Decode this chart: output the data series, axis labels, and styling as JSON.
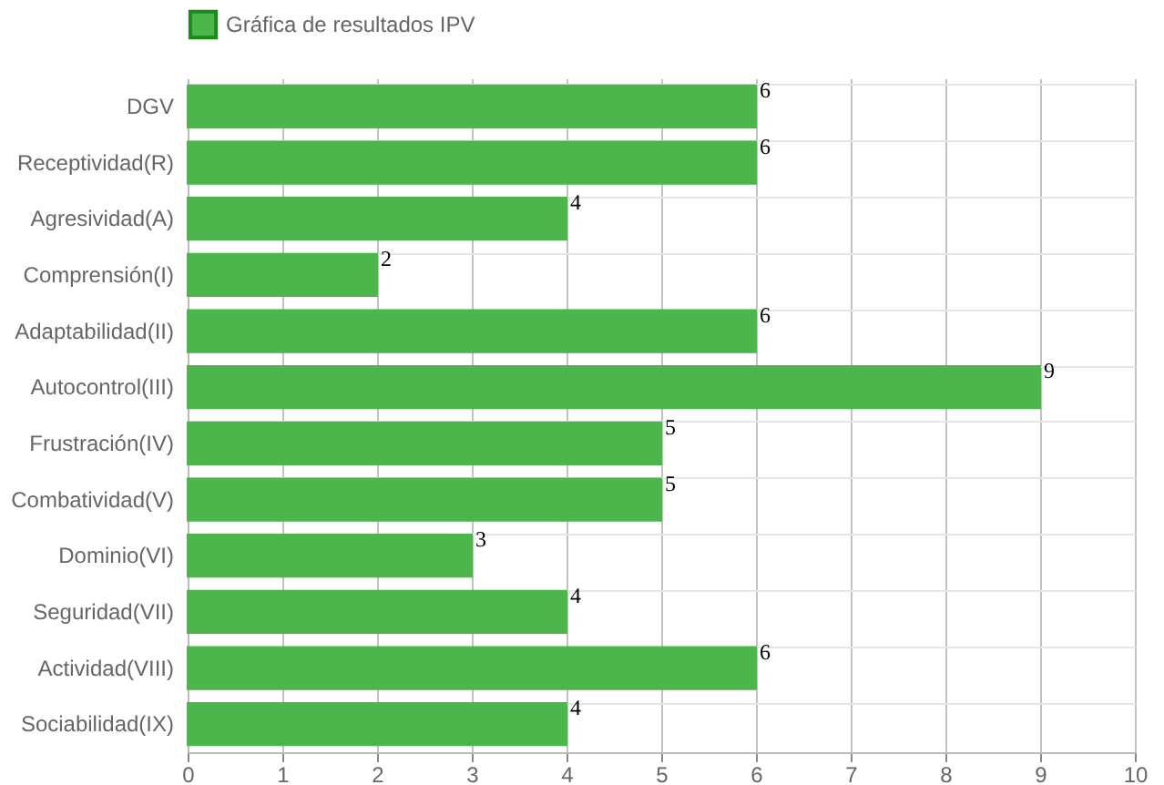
{
  "chart_data": {
    "type": "bar",
    "orientation": "horizontal",
    "categories": [
      "DGV",
      "Receptividad(R)",
      "Agresividad(A)",
      "Comprensión(I)",
      "Adaptabilidad(II)",
      "Autocontrol(III)",
      "Frustración(IV)",
      "Combatividad(V)",
      "Dominio(VI)",
      "Seguridad(VII)",
      "Actividad(VIII)",
      "Sociabilidad(IX)"
    ],
    "series": [
      {
        "name": "Gráfica de resultados IPV",
        "color": "#4cb54c",
        "values": [
          6,
          6,
          4,
          2,
          6,
          9,
          5,
          5,
          3,
          4,
          6,
          4
        ]
      }
    ],
    "xlim": [
      0,
      10
    ],
    "xticks": [
      0,
      1,
      2,
      3,
      4,
      5,
      6,
      7,
      8,
      9,
      10
    ],
    "grid": true,
    "legend": "top",
    "data_labels": true
  }
}
